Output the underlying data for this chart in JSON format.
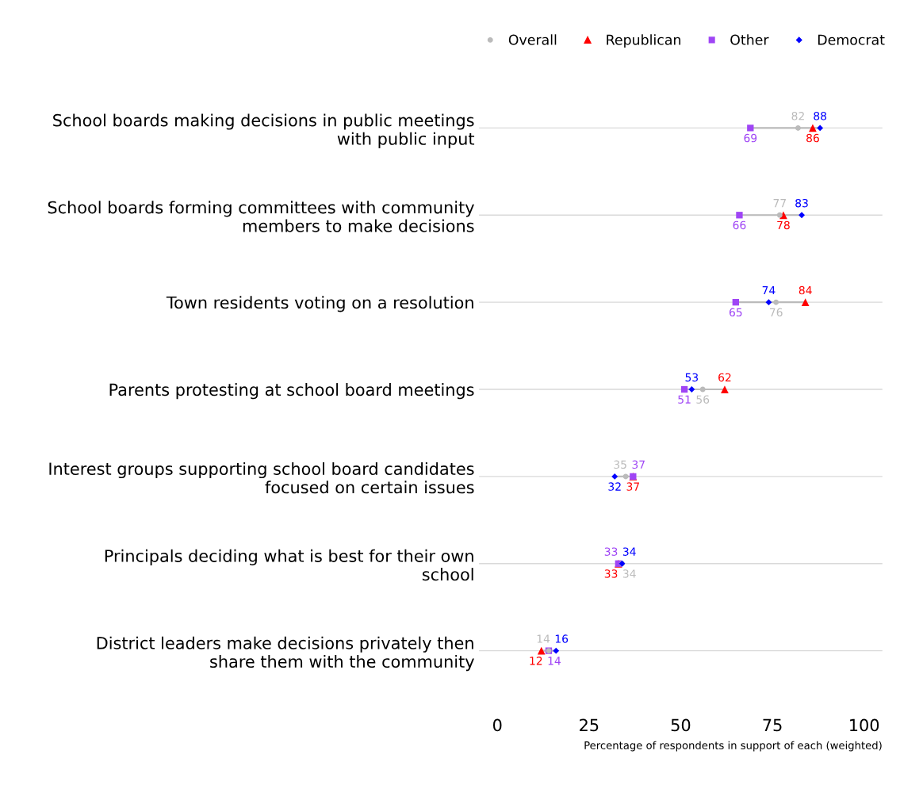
{
  "chart_data": {
    "type": "scatter",
    "orientation": "horizontal",
    "categories": [
      "School boards making decisions in public meetings\nwith public input",
      "School boards forming committees with community\nmembers to make decisions",
      "Town residents voting on a resolution",
      "Parents protesting at school board meetings",
      "Interest groups supporting school board candidates\nfocused on certain issues",
      "Principals deciding what is best for their own\nschool",
      "District leaders make decisions privately then\nshare them with the community"
    ],
    "series": [
      {
        "name": "Overall",
        "color": "#bbbbbb",
        "marker": "circle",
        "values": [
          82,
          77,
          76,
          56,
          35,
          34,
          14
        ]
      },
      {
        "name": "Republican",
        "color": "#ff0000",
        "marker": "triangle",
        "values": [
          86,
          78,
          84,
          62,
          37,
          33,
          12
        ]
      },
      {
        "name": "Other",
        "color": "#9f45f5",
        "marker": "square",
        "values": [
          69,
          66,
          65,
          51,
          37,
          33,
          14
        ]
      },
      {
        "name": "Democrat",
        "color": "#0000ff",
        "marker": "diamond",
        "values": [
          88,
          83,
          74,
          53,
          32,
          34,
          16
        ]
      }
    ],
    "xlabel": "Percentage of respondents in support of each (weighted)",
    "xlim": [
      -5,
      105
    ],
    "xticks": [
      0,
      25,
      50,
      75,
      100
    ],
    "grid": "y",
    "legend": "top",
    "data_labels": true
  }
}
